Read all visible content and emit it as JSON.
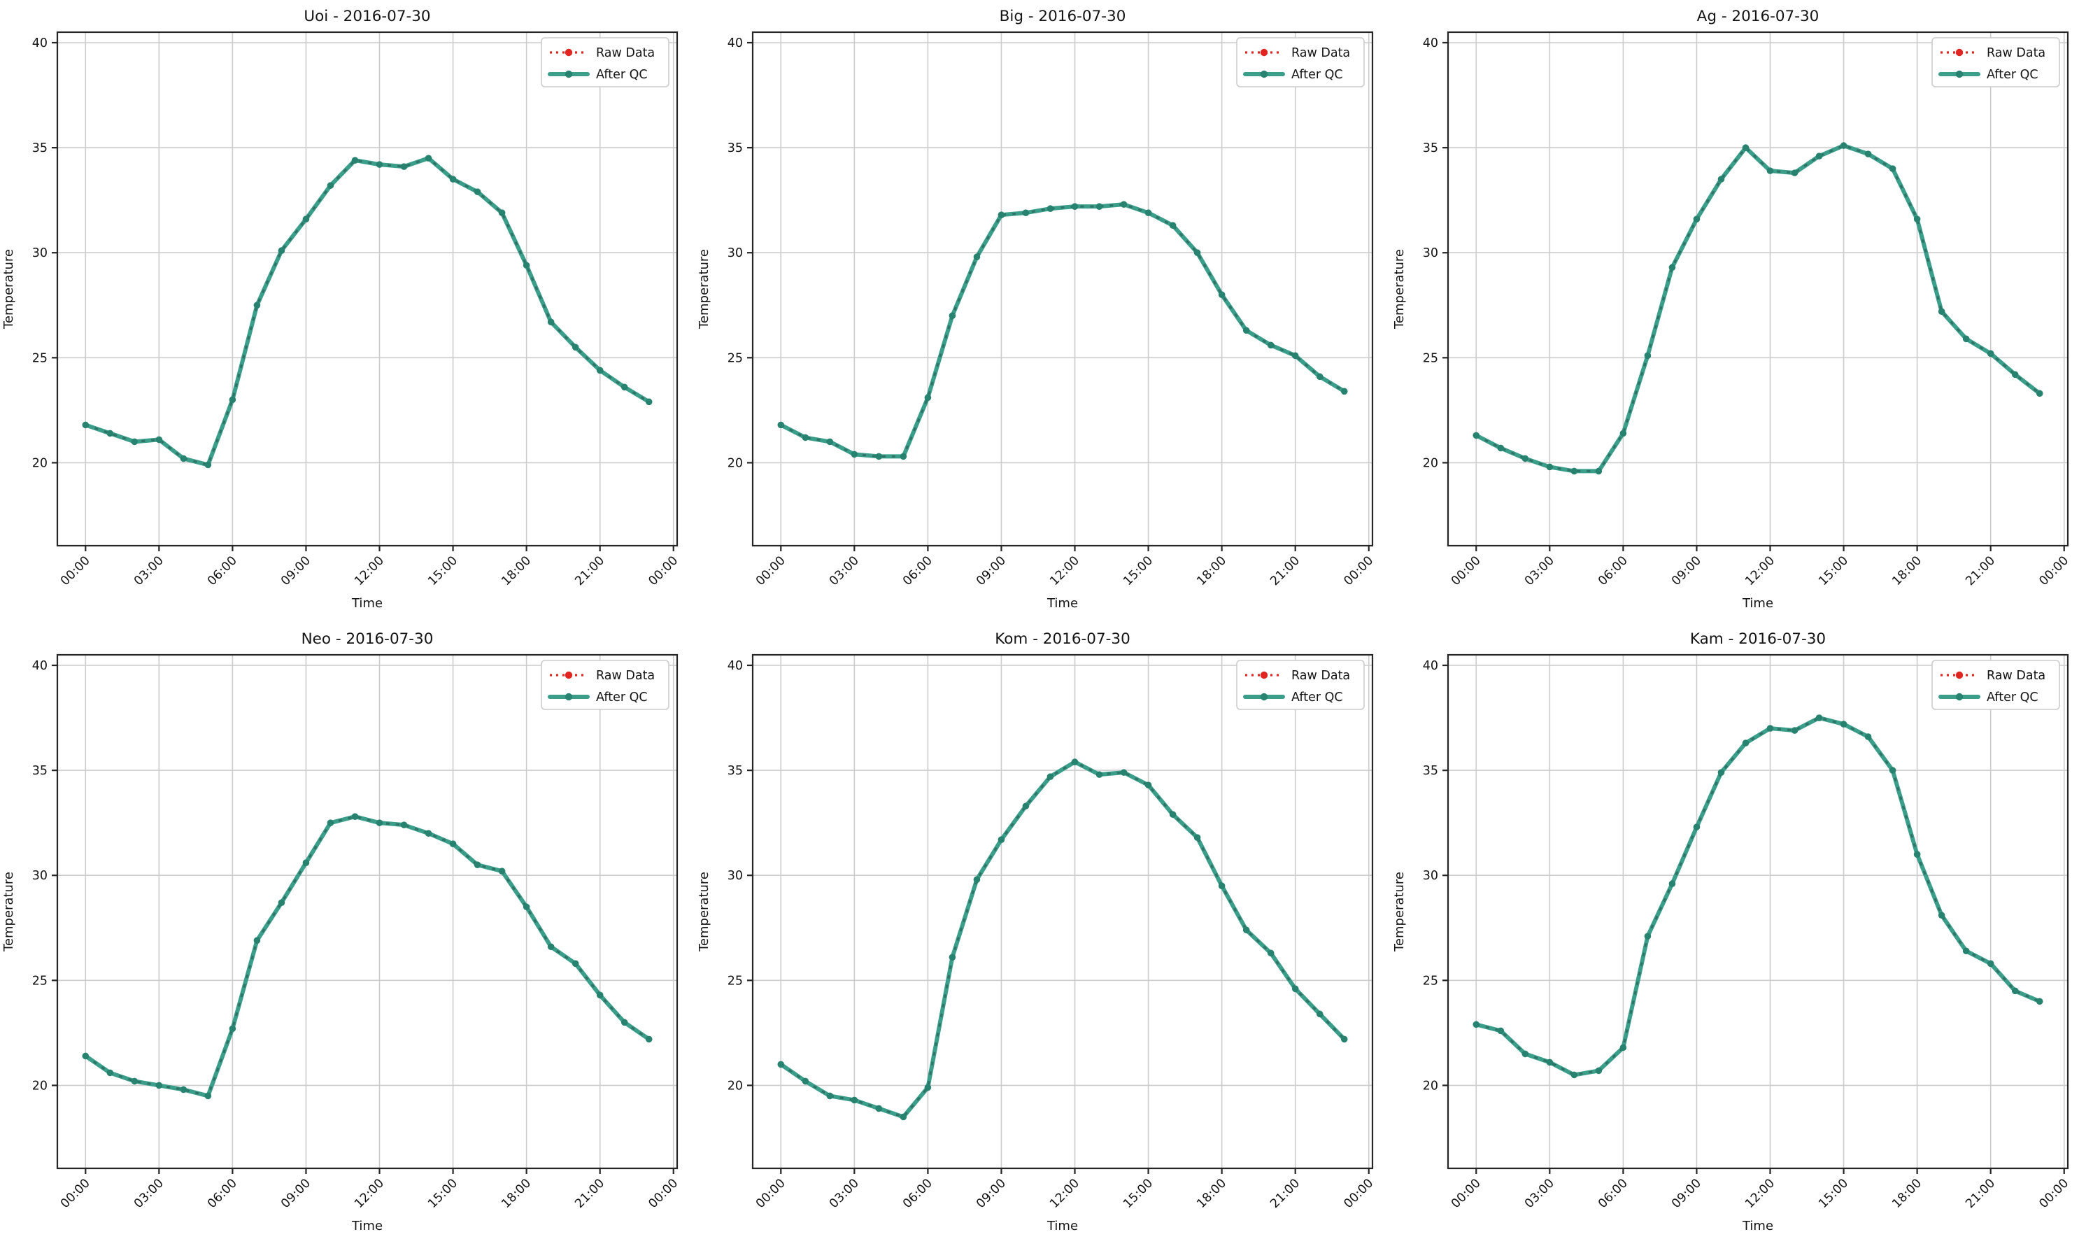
{
  "figure": {
    "kind": "matplotlib-style temperature QC comparison, 2 rows x 3 columns",
    "background": "#ffffff"
  },
  "colors": {
    "raw_line": "#e12621",
    "raw_overlay": "#2e6e61",
    "qc_line": "#3a9e8a",
    "qc_marker": "#27826f",
    "grid": "#cccccc",
    "axis": "#262626",
    "text": "#141414",
    "legend_border": "#cccccc",
    "legend_bg": "#ffffff"
  },
  "legend": {
    "entries": [
      {
        "label": "Raw Data",
        "style": "red dotted line with dot marker"
      },
      {
        "label": "After QC",
        "style": "thick teal line with dot marker"
      }
    ],
    "position": "upper right"
  },
  "chart_data": [
    {
      "id": "uoi",
      "type": "line",
      "title": "Uoi - 2016-07-30",
      "xlabel": "Time",
      "ylabel": "Temperature",
      "x_tick_values": [
        0,
        3,
        6,
        9,
        12,
        15,
        18,
        21,
        24
      ],
      "x_tick_labels": [
        "00:00",
        "03:00",
        "06:00",
        "09:00",
        "12:00",
        "15:00",
        "18:00",
        "21:00",
        "00:00"
      ],
      "y_ticks": [
        20,
        25,
        30,
        35,
        40
      ],
      "xlim": [
        -1.15,
        24.15
      ],
      "ylim": [
        16.05,
        40.5
      ],
      "grid": true,
      "x_hours": [
        0,
        1,
        2,
        3,
        4,
        5,
        6,
        7,
        8,
        9,
        10,
        11,
        12,
        13,
        14,
        15,
        16,
        17,
        18,
        19,
        20,
        21,
        22,
        23
      ],
      "series": [
        {
          "name": "Raw Data",
          "values": [
            21.8,
            21.4,
            21.0,
            21.1,
            20.2,
            19.9,
            23.0,
            27.5,
            30.1,
            31.6,
            33.2,
            34.4,
            34.2,
            34.1,
            34.5,
            33.5,
            32.9,
            31.9,
            29.4,
            26.7,
            25.5,
            24.4,
            23.6,
            22.9
          ]
        },
        {
          "name": "After QC",
          "values": [
            21.8,
            21.4,
            21.0,
            21.1,
            20.2,
            19.9,
            23.0,
            27.5,
            30.1,
            31.6,
            33.2,
            34.4,
            34.2,
            34.1,
            34.5,
            33.5,
            32.9,
            31.9,
            29.4,
            26.7,
            25.5,
            24.4,
            23.6,
            22.9
          ]
        }
      ]
    },
    {
      "id": "big",
      "type": "line",
      "title": "Big - 2016-07-30",
      "xlabel": "Time",
      "ylabel": "Temperature",
      "x_tick_values": [
        0,
        3,
        6,
        9,
        12,
        15,
        18,
        21,
        24
      ],
      "x_tick_labels": [
        "00:00",
        "03:00",
        "06:00",
        "09:00",
        "12:00",
        "15:00",
        "18:00",
        "21:00",
        "00:00"
      ],
      "y_ticks": [
        20,
        25,
        30,
        35,
        40
      ],
      "xlim": [
        -1.15,
        24.15
      ],
      "ylim": [
        16.05,
        40.5
      ],
      "grid": true,
      "x_hours": [
        0,
        1,
        2,
        3,
        4,
        5,
        6,
        7,
        8,
        9,
        10,
        11,
        12,
        13,
        14,
        15,
        16,
        17,
        18,
        19,
        20,
        21,
        22,
        23
      ],
      "series": [
        {
          "name": "Raw Data",
          "values": [
            21.8,
            21.2,
            21.0,
            20.4,
            20.3,
            20.3,
            23.1,
            27.0,
            29.8,
            31.8,
            31.9,
            32.1,
            32.2,
            32.2,
            32.3,
            31.9,
            31.3,
            30.0,
            28.0,
            26.3,
            25.6,
            25.1,
            24.1,
            23.4
          ]
        },
        {
          "name": "After QC",
          "values": [
            21.8,
            21.2,
            21.0,
            20.4,
            20.3,
            20.3,
            23.1,
            27.0,
            29.8,
            31.8,
            31.9,
            32.1,
            32.2,
            32.2,
            32.3,
            31.9,
            31.3,
            30.0,
            28.0,
            26.3,
            25.6,
            25.1,
            24.1,
            23.4
          ]
        }
      ]
    },
    {
      "id": "ag",
      "type": "line",
      "title": "Ag - 2016-07-30",
      "xlabel": "Time",
      "ylabel": "Temperature",
      "x_tick_values": [
        0,
        3,
        6,
        9,
        12,
        15,
        18,
        21,
        24
      ],
      "x_tick_labels": [
        "00:00",
        "03:00",
        "06:00",
        "09:00",
        "12:00",
        "15:00",
        "18:00",
        "21:00",
        "00:00"
      ],
      "y_ticks": [
        20,
        25,
        30,
        35,
        40
      ],
      "xlim": [
        -1.15,
        24.15
      ],
      "ylim": [
        16.05,
        40.5
      ],
      "grid": true,
      "x_hours": [
        0,
        1,
        2,
        3,
        4,
        5,
        6,
        7,
        8,
        9,
        10,
        11,
        12,
        13,
        14,
        15,
        16,
        17,
        18,
        19,
        20,
        21,
        22,
        23
      ],
      "series": [
        {
          "name": "Raw Data",
          "values": [
            21.3,
            20.7,
            20.2,
            19.8,
            19.6,
            19.6,
            21.4,
            25.1,
            29.3,
            31.6,
            33.5,
            35.0,
            33.9,
            33.8,
            34.6,
            35.1,
            34.7,
            34.0,
            31.6,
            27.2,
            25.9,
            25.2,
            24.2,
            23.3
          ]
        },
        {
          "name": "After QC",
          "values": [
            21.3,
            20.7,
            20.2,
            19.8,
            19.6,
            19.6,
            21.4,
            25.1,
            29.3,
            31.6,
            33.5,
            35.0,
            33.9,
            33.8,
            34.6,
            35.1,
            34.7,
            34.0,
            31.6,
            27.2,
            25.9,
            25.2,
            24.2,
            23.3
          ]
        }
      ]
    },
    {
      "id": "neo",
      "type": "line",
      "title": "Neo - 2016-07-30",
      "xlabel": "Time",
      "ylabel": "Temperature",
      "x_tick_values": [
        0,
        3,
        6,
        9,
        12,
        15,
        18,
        21,
        24
      ],
      "x_tick_labels": [
        "00:00",
        "03:00",
        "06:00",
        "09:00",
        "12:00",
        "15:00",
        "18:00",
        "21:00",
        "00:00"
      ],
      "y_ticks": [
        20,
        25,
        30,
        35,
        40
      ],
      "xlim": [
        -1.15,
        24.15
      ],
      "ylim": [
        16.05,
        40.5
      ],
      "grid": true,
      "x_hours": [
        0,
        1,
        2,
        3,
        4,
        5,
        6,
        7,
        8,
        9,
        10,
        11,
        12,
        13,
        14,
        15,
        16,
        17,
        18,
        19,
        20,
        21,
        22,
        23
      ],
      "series": [
        {
          "name": "Raw Data",
          "values": [
            21.4,
            20.6,
            20.2,
            20.0,
            19.8,
            19.5,
            22.7,
            26.9,
            28.7,
            30.6,
            32.5,
            32.8,
            32.5,
            32.4,
            32.0,
            31.5,
            30.5,
            30.2,
            28.5,
            26.6,
            25.8,
            24.3,
            23.0,
            22.2
          ]
        },
        {
          "name": "After QC",
          "values": [
            21.4,
            20.6,
            20.2,
            20.0,
            19.8,
            19.5,
            22.7,
            26.9,
            28.7,
            30.6,
            32.5,
            32.8,
            32.5,
            32.4,
            32.0,
            31.5,
            30.5,
            30.2,
            28.5,
            26.6,
            25.8,
            24.3,
            23.0,
            22.2
          ]
        }
      ]
    },
    {
      "id": "kom",
      "type": "line",
      "title": "Kom - 2016-07-30",
      "xlabel": "Time",
      "ylabel": "Temperature",
      "x_tick_values": [
        0,
        3,
        6,
        9,
        12,
        15,
        18,
        21,
        24
      ],
      "x_tick_labels": [
        "00:00",
        "03:00",
        "06:00",
        "09:00",
        "12:00",
        "15:00",
        "18:00",
        "21:00",
        "00:00"
      ],
      "y_ticks": [
        20,
        25,
        30,
        35,
        40
      ],
      "xlim": [
        -1.15,
        24.15
      ],
      "ylim": [
        16.05,
        40.5
      ],
      "grid": true,
      "x_hours": [
        0,
        1,
        2,
        3,
        4,
        5,
        6,
        7,
        8,
        9,
        10,
        11,
        12,
        13,
        14,
        15,
        16,
        17,
        18,
        19,
        20,
        21,
        22,
        23
      ],
      "series": [
        {
          "name": "Raw Data",
          "values": [
            21.0,
            20.2,
            19.5,
            19.3,
            18.9,
            18.5,
            19.9,
            26.1,
            29.8,
            31.7,
            33.3,
            34.7,
            35.4,
            34.8,
            34.9,
            34.3,
            32.9,
            31.8,
            29.5,
            27.4,
            26.3,
            24.6,
            23.4,
            22.2
          ]
        },
        {
          "name": "After QC",
          "values": [
            21.0,
            20.2,
            19.5,
            19.3,
            18.9,
            18.5,
            19.9,
            26.1,
            29.8,
            31.7,
            33.3,
            34.7,
            35.4,
            34.8,
            34.9,
            34.3,
            32.9,
            31.8,
            29.5,
            27.4,
            26.3,
            24.6,
            23.4,
            22.2
          ]
        }
      ]
    },
    {
      "id": "kam",
      "type": "line",
      "title": "Kam - 2016-07-30",
      "xlabel": "Time",
      "ylabel": "Temperature",
      "x_tick_values": [
        0,
        3,
        6,
        9,
        12,
        15,
        18,
        21,
        24
      ],
      "x_tick_labels": [
        "00:00",
        "03:00",
        "06:00",
        "09:00",
        "12:00",
        "15:00",
        "18:00",
        "21:00",
        "00:00"
      ],
      "y_ticks": [
        20,
        25,
        30,
        35,
        40
      ],
      "xlim": [
        -1.15,
        24.15
      ],
      "ylim": [
        16.05,
        40.5
      ],
      "grid": true,
      "x_hours": [
        0,
        1,
        2,
        3,
        4,
        5,
        6,
        7,
        8,
        9,
        10,
        11,
        12,
        13,
        14,
        15,
        16,
        17,
        18,
        19,
        20,
        21,
        22,
        23
      ],
      "series": [
        {
          "name": "Raw Data",
          "values": [
            22.9,
            22.6,
            21.5,
            21.1,
            20.5,
            20.7,
            21.8,
            27.1,
            29.6,
            32.3,
            34.9,
            36.3,
            37.0,
            36.9,
            37.5,
            37.2,
            36.6,
            35.0,
            31.0,
            28.1,
            26.4,
            25.8,
            24.5,
            24.0
          ]
        },
        {
          "name": "After QC",
          "values": [
            22.9,
            22.6,
            21.5,
            21.1,
            20.5,
            20.7,
            21.8,
            27.1,
            29.6,
            32.3,
            34.9,
            36.3,
            37.0,
            36.9,
            37.5,
            37.2,
            36.6,
            35.0,
            31.0,
            28.1,
            26.4,
            25.8,
            24.5,
            24.0
          ]
        }
      ]
    }
  ]
}
